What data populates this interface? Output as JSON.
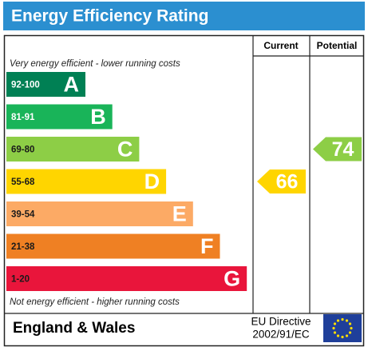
{
  "header": {
    "title": "Energy Efficiency Rating"
  },
  "columns": [
    "Current",
    "Potential"
  ],
  "notes": {
    "top": "Very energy efficient - lower running costs",
    "bottom": "Not energy efficient - higher running costs"
  },
  "bands": [
    {
      "range": "92-100",
      "letter": "A",
      "color": "#008054",
      "label_color": "#ffffff"
    },
    {
      "range": "81-91",
      "letter": "B",
      "color": "#19b459",
      "label_color": "#ffffff"
    },
    {
      "range": "69-80",
      "letter": "C",
      "color": "#8dce46",
      "label_color": "#1a1a1a"
    },
    {
      "range": "55-68",
      "letter": "D",
      "color": "#ffd500",
      "label_color": "#1a1a1a"
    },
    {
      "range": "39-54",
      "letter": "E",
      "color": "#fcaa65",
      "label_color": "#1a1a1a"
    },
    {
      "range": "21-38",
      "letter": "F",
      "color": "#ef8023",
      "label_color": "#1a1a1a"
    },
    {
      "range": "1-20",
      "letter": "G",
      "color": "#e9153b",
      "label_color": "#1a1a1a"
    }
  ],
  "ratings": {
    "current": 66,
    "potential": 74
  },
  "footer": {
    "region": "England & Wales",
    "directive": [
      "EU Directive",
      "2002/91/EC"
    ]
  }
}
